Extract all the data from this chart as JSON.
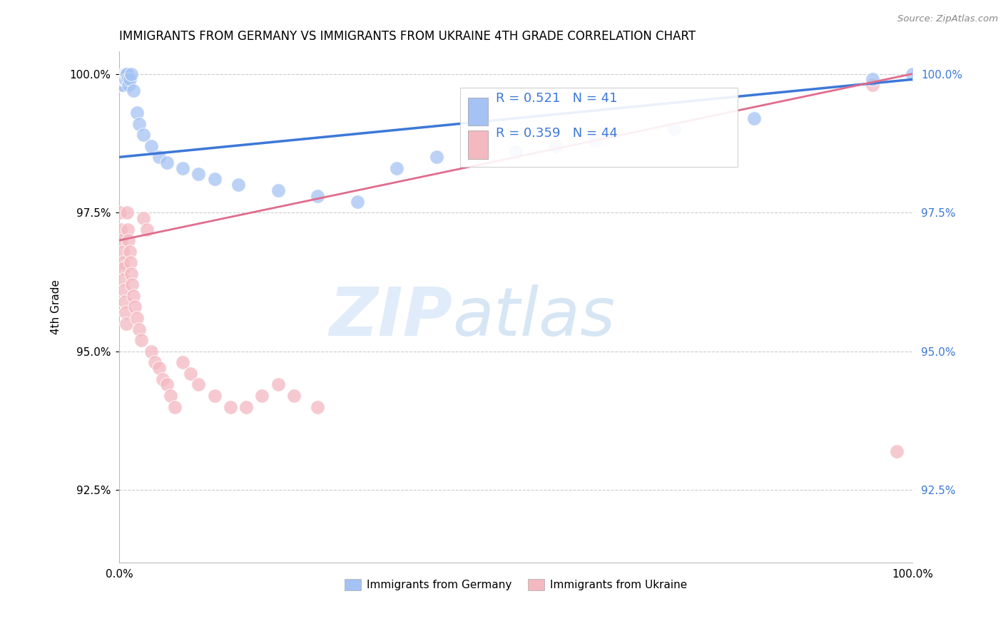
{
  "title": "IMMIGRANTS FROM GERMANY VS IMMIGRANTS FROM UKRAINE 4TH GRADE CORRELATION CHART",
  "source": "Source: ZipAtlas.com",
  "ylabel": "4th Grade",
  "x_min": 0.0,
  "x_max": 1.0,
  "y_min": 0.912,
  "y_max": 1.004,
  "ytick_labels": [
    "92.5%",
    "95.0%",
    "97.5%",
    "100.0%"
  ],
  "ytick_vals": [
    0.925,
    0.95,
    0.975,
    1.0
  ],
  "blue_color": "#a4c2f4",
  "pink_color": "#f4b8c1",
  "blue_line_color": "#3c78d8",
  "pink_line_color": "#e06c8c",
  "watermark_zip": "ZIP",
  "watermark_atlas": "atlas",
  "legend_r_blue": "R = 0.521",
  "legend_n_blue": "N = 41",
  "legend_r_pink": "R = 0.359",
  "legend_n_pink": "N = 44",
  "germany_x": [
    0.003,
    0.004,
    0.004,
    0.005,
    0.005,
    0.005,
    0.006,
    0.006,
    0.007,
    0.007,
    0.008,
    0.008,
    0.009,
    0.01,
    0.011,
    0.012,
    0.013,
    0.015,
    0.018,
    0.022,
    0.025,
    0.03,
    0.04,
    0.05,
    0.06,
    0.08,
    0.1,
    0.12,
    0.15,
    0.2,
    0.25,
    0.3,
    0.35,
    0.4,
    0.5,
    0.55,
    0.6,
    0.7,
    0.8,
    0.95,
    1.0
  ],
  "germany_y": [
    0.998,
    0.999,
    0.998,
    0.999,
    1.0,
    0.999,
    1.0,
    0.999,
    1.0,
    0.999,
    1.0,
    0.999,
    1.0,
    1.0,
    0.999,
    0.998,
    0.999,
    1.0,
    0.997,
    0.993,
    0.991,
    0.989,
    0.987,
    0.985,
    0.984,
    0.983,
    0.982,
    0.981,
    0.98,
    0.979,
    0.978,
    0.977,
    0.983,
    0.985,
    0.986,
    0.987,
    0.988,
    0.99,
    0.992,
    0.999,
    1.0
  ],
  "ukraine_x": [
    0.001,
    0.002,
    0.003,
    0.004,
    0.004,
    0.005,
    0.005,
    0.006,
    0.007,
    0.008,
    0.009,
    0.01,
    0.011,
    0.012,
    0.013,
    0.014,
    0.015,
    0.016,
    0.018,
    0.02,
    0.022,
    0.025,
    0.028,
    0.03,
    0.035,
    0.04,
    0.045,
    0.05,
    0.055,
    0.06,
    0.065,
    0.07,
    0.08,
    0.09,
    0.1,
    0.12,
    0.14,
    0.16,
    0.18,
    0.2,
    0.22,
    0.25,
    0.95,
    0.98
  ],
  "ukraine_y": [
    0.975,
    0.972,
    0.97,
    0.968,
    0.966,
    0.965,
    0.963,
    0.961,
    0.959,
    0.957,
    0.955,
    0.975,
    0.972,
    0.97,
    0.968,
    0.966,
    0.964,
    0.962,
    0.96,
    0.958,
    0.956,
    0.954,
    0.952,
    0.974,
    0.972,
    0.95,
    0.948,
    0.947,
    0.945,
    0.944,
    0.942,
    0.94,
    0.948,
    0.946,
    0.944,
    0.942,
    0.94,
    0.94,
    0.942,
    0.944,
    0.942,
    0.94,
    0.998,
    0.932
  ]
}
